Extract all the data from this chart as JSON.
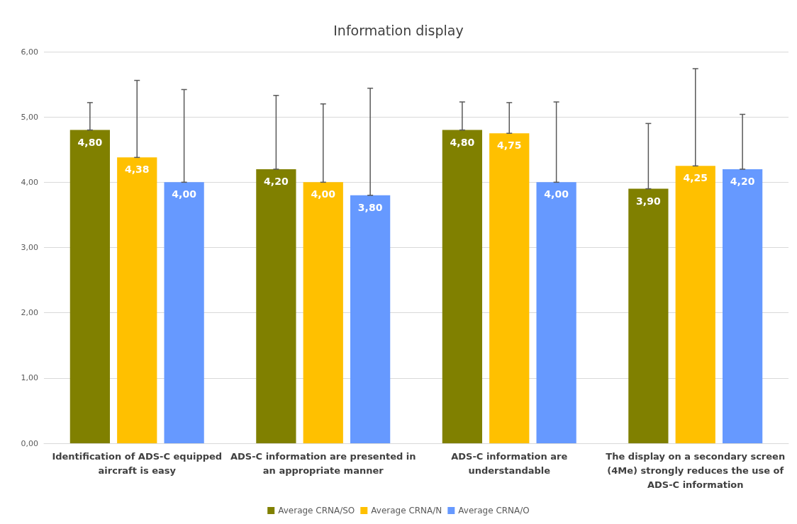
{
  "chart_data": {
    "type": "bar",
    "title": "Information display",
    "categories": [
      "Identification of ADS-C equipped\naircraft is easy",
      "ADS-C information are presented in\nan appropriate manner",
      "ADS-C information are\nunderstandable",
      "The display on a secondary screen\n(4Me) strongly reduces the use of\nADS-C information"
    ],
    "series": [
      {
        "name": "Average CRNA/SO",
        "color": "#808000",
        "values": [
          4.8,
          4.2,
          4.8,
          3.9
        ],
        "value_labels": [
          "4,80",
          "4,20",
          "4,80",
          "3,90"
        ],
        "errors": [
          [
            4.8,
            5.22
          ],
          [
            4.2,
            5.33
          ],
          [
            4.8,
            5.23
          ],
          [
            3.9,
            4.9
          ]
        ]
      },
      {
        "name": "Average CRNA/N",
        "color": "#ffc000",
        "values": [
          4.38,
          4.0,
          4.75,
          4.25
        ],
        "value_labels": [
          "4,38",
          "4,00",
          "4,75",
          "4,25"
        ],
        "errors": [
          [
            4.38,
            5.56
          ],
          [
            4.0,
            5.2
          ],
          [
            4.75,
            5.22
          ],
          [
            4.25,
            5.74
          ]
        ]
      },
      {
        "name": "Average CRNA/O",
        "color": "#6699ff",
        "values": [
          4.0,
          3.8,
          4.0,
          4.2
        ],
        "value_labels": [
          "4,00",
          "3,80",
          "4,00",
          "4,20"
        ],
        "errors": [
          [
            4.0,
            5.42
          ],
          [
            3.8,
            5.44
          ],
          [
            4.0,
            5.23
          ],
          [
            4.2,
            5.04
          ]
        ]
      }
    ],
    "ylim": [
      0,
      6
    ],
    "yticks": [
      {
        "value": 0,
        "label": "0,00"
      },
      {
        "value": 1,
        "label": "1,00"
      },
      {
        "value": 2,
        "label": "2,00"
      },
      {
        "value": 3,
        "label": "3,00"
      },
      {
        "value": 4,
        "label": "4,00"
      },
      {
        "value": 5,
        "label": "5,00"
      },
      {
        "value": 6,
        "label": "6,00"
      }
    ],
    "grid": "y",
    "legend": "bottom"
  }
}
